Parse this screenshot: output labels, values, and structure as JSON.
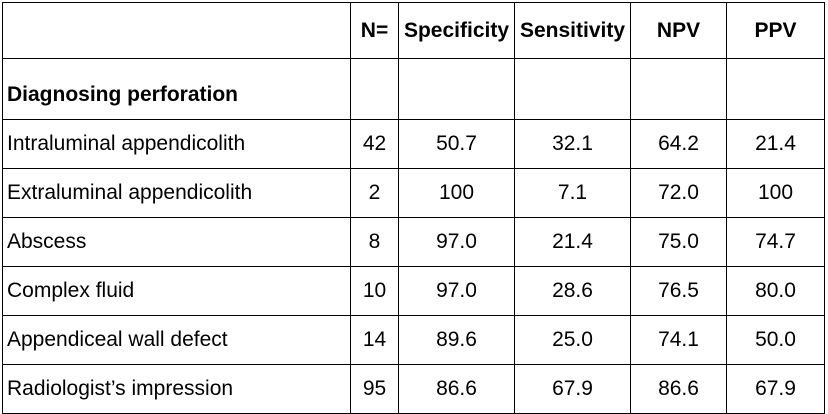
{
  "table": {
    "headers": [
      "",
      "N=",
      "Specificity",
      "Sensitivity",
      "NPV",
      "PPV"
    ],
    "section_title": "Diagnosing perforation",
    "rows": [
      {
        "label": "Intraluminal appendicolith",
        "n": "42",
        "specificity": "50.7",
        "sensitivity": "32.1",
        "npv": "64.2",
        "ppv": "21.4"
      },
      {
        "label": "Extraluminal appendicolith",
        "n": "2",
        "specificity": "100",
        "sensitivity": "7.1",
        "npv": "72.0",
        "ppv": "100"
      },
      {
        "label": "Abscess",
        "n": "8",
        "specificity": "97.0",
        "sensitivity": "21.4",
        "npv": "75.0",
        "ppv": "74.7"
      },
      {
        "label": "Complex fluid",
        "n": "10",
        "specificity": "97.0",
        "sensitivity": "28.6",
        "npv": "76.5",
        "ppv": "80.0"
      },
      {
        "label": "Appendiceal wall defect",
        "n": "14",
        "specificity": "89.6",
        "sensitivity": "25.0",
        "npv": "74.1",
        "ppv": "50.0"
      },
      {
        "label": "Radiologist’s impression",
        "n": "95",
        "specificity": "86.6",
        "sensitivity": "67.9",
        "npv": "86.6",
        "ppv": "67.9"
      }
    ]
  }
}
